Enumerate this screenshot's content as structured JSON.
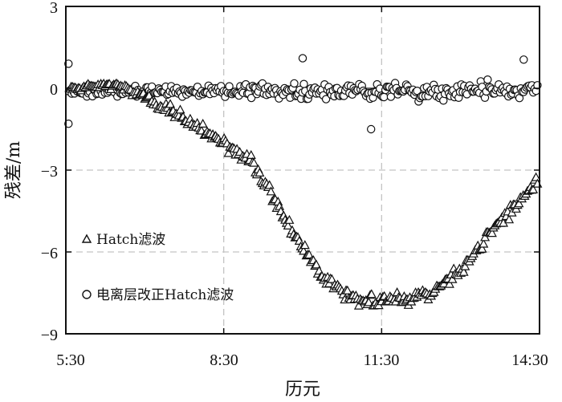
{
  "chart_data": {
    "type": "scatter",
    "title": "",
    "xlabel": "历元",
    "ylabel": "残差/m",
    "x_ticks": [
      "5:30",
      "8:30",
      "11:30",
      "14:30"
    ],
    "y_ticks": [
      "3",
      "0",
      "−3",
      "−6",
      "−9"
    ],
    "xlim_hours": [
      5.5,
      14.5
    ],
    "ylim": [
      -9,
      3
    ],
    "grid": "dashed at inner ticks",
    "legend_placement": "left",
    "series": [
      {
        "name": "Hatch滤波",
        "marker": "triangle-open",
        "profile_points": [
          [
            5.5,
            0.0
          ],
          [
            6.0,
            0.1
          ],
          [
            6.5,
            0.1
          ],
          [
            7.0,
            -0.3
          ],
          [
            7.5,
            -0.9
          ],
          [
            8.0,
            -1.4
          ],
          [
            8.5,
            -2.0
          ],
          [
            9.0,
            -2.6
          ],
          [
            9.3,
            -3.6
          ],
          [
            9.6,
            -4.6
          ],
          [
            9.9,
            -5.6
          ],
          [
            10.2,
            -6.4
          ],
          [
            10.5,
            -7.1
          ],
          [
            10.8,
            -7.5
          ],
          [
            11.1,
            -7.7
          ],
          [
            11.5,
            -7.8
          ],
          [
            12.0,
            -7.7
          ],
          [
            12.4,
            -7.5
          ],
          [
            12.8,
            -7.0
          ],
          [
            13.2,
            -6.2
          ],
          [
            13.6,
            -5.2
          ],
          [
            14.0,
            -4.4
          ],
          [
            14.5,
            -3.3
          ]
        ],
        "scatter_spread": 0.35
      },
      {
        "name": "电离层改正Hatch滤波",
        "marker": "circle-open",
        "mean": -0.1,
        "scatter_spread": 0.45,
        "notable_points": [
          [
            5.55,
            -1.3
          ],
          [
            5.55,
            0.9
          ],
          [
            11.3,
            -1.5
          ],
          [
            10.0,
            1.1
          ],
          [
            14.2,
            1.05
          ]
        ]
      }
    ]
  }
}
